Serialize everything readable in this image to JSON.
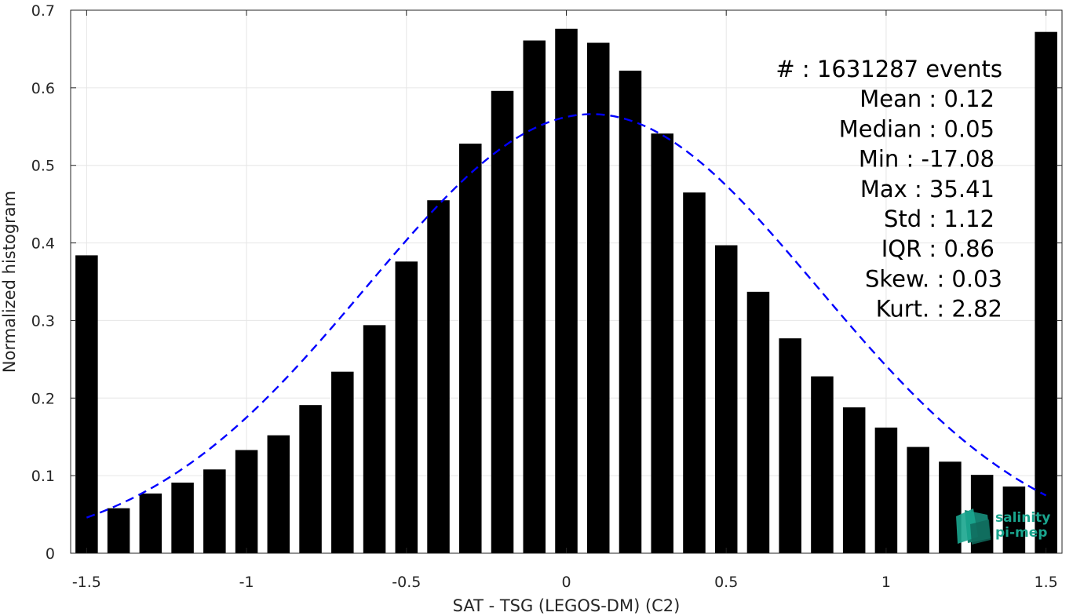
{
  "chart_data": {
    "type": "bar",
    "xlabel": "SAT - TSG (LEGOS-DM) (C2)",
    "ylabel": "Normalized histogram",
    "xlim": [
      -1.55,
      1.55
    ],
    "ylim": [
      0,
      0.7
    ],
    "grid": true,
    "x_ticks": [
      {
        "value": -1.5,
        "label": "-1.5"
      },
      {
        "value": -1,
        "label": "-1"
      },
      {
        "value": -0.5,
        "label": "-0.5"
      },
      {
        "value": 0,
        "label": "0"
      },
      {
        "value": 0.5,
        "label": "0.5"
      },
      {
        "value": 1,
        "label": "1"
      },
      {
        "value": 1.5,
        "label": "1.5"
      }
    ],
    "y_ticks": [
      {
        "value": 0,
        "label": "0"
      },
      {
        "value": 0.1,
        "label": "0.1"
      },
      {
        "value": 0.2,
        "label": "0.2"
      },
      {
        "value": 0.3,
        "label": "0.3"
      },
      {
        "value": 0.4,
        "label": "0.4"
      },
      {
        "value": 0.5,
        "label": "0.5"
      },
      {
        "value": 0.6,
        "label": "0.6"
      },
      {
        "value": 0.7,
        "label": "0.7"
      }
    ],
    "bar_width": 0.07,
    "bar_color": "#000000",
    "bars": [
      {
        "x": -1.5,
        "y": 0.384
      },
      {
        "x": -1.4,
        "y": 0.058
      },
      {
        "x": -1.3,
        "y": 0.077
      },
      {
        "x": -1.2,
        "y": 0.091
      },
      {
        "x": -1.1,
        "y": 0.108
      },
      {
        "x": -1.0,
        "y": 0.133
      },
      {
        "x": -0.9,
        "y": 0.152
      },
      {
        "x": -0.8,
        "y": 0.191
      },
      {
        "x": -0.7,
        "y": 0.234
      },
      {
        "x": -0.6,
        "y": 0.294
      },
      {
        "x": -0.5,
        "y": 0.376
      },
      {
        "x": -0.4,
        "y": 0.455
      },
      {
        "x": -0.3,
        "y": 0.528
      },
      {
        "x": -0.2,
        "y": 0.596
      },
      {
        "x": -0.1,
        "y": 0.661
      },
      {
        "x": 0.0,
        "y": 0.676
      },
      {
        "x": 0.1,
        "y": 0.658
      },
      {
        "x": 0.2,
        "y": 0.622
      },
      {
        "x": 0.3,
        "y": 0.541
      },
      {
        "x": 0.4,
        "y": 0.465
      },
      {
        "x": 0.5,
        "y": 0.397
      },
      {
        "x": 0.6,
        "y": 0.337
      },
      {
        "x": 0.7,
        "y": 0.277
      },
      {
        "x": 0.8,
        "y": 0.228
      },
      {
        "x": 0.9,
        "y": 0.188
      },
      {
        "x": 1.0,
        "y": 0.162
      },
      {
        "x": 1.1,
        "y": 0.137
      },
      {
        "x": 1.2,
        "y": 0.118
      },
      {
        "x": 1.3,
        "y": 0.101
      },
      {
        "x": 1.4,
        "y": 0.086
      },
      {
        "x": 1.5,
        "y": 0.672
      }
    ],
    "fit_curve": {
      "type": "gaussian",
      "style": "dashed",
      "color": "#0000ff",
      "mean": 0.08,
      "std": 0.705,
      "peak": 0.566,
      "x_range": [
        -1.5,
        1.5
      ]
    },
    "stats": [
      {
        "name": "#  ",
        "value": "1631287 events"
      },
      {
        "name": "Mean",
        "value": "0.12"
      },
      {
        "name": "Median",
        "value": "0.05"
      },
      {
        "name": "Min",
        "value": "-17.08"
      },
      {
        "name": "Max",
        "value": "35.41"
      },
      {
        "name": "Std",
        "value": "1.12"
      },
      {
        "name": "IQR",
        "value": "0.86"
      },
      {
        "name": "Skew.",
        "value": "0.03"
      },
      {
        "name": "Kurt.",
        "value": "2.82"
      }
    ]
  },
  "logo": {
    "line1": "salinity",
    "line2": "pi-mep",
    "color": "#1aa58e"
  }
}
